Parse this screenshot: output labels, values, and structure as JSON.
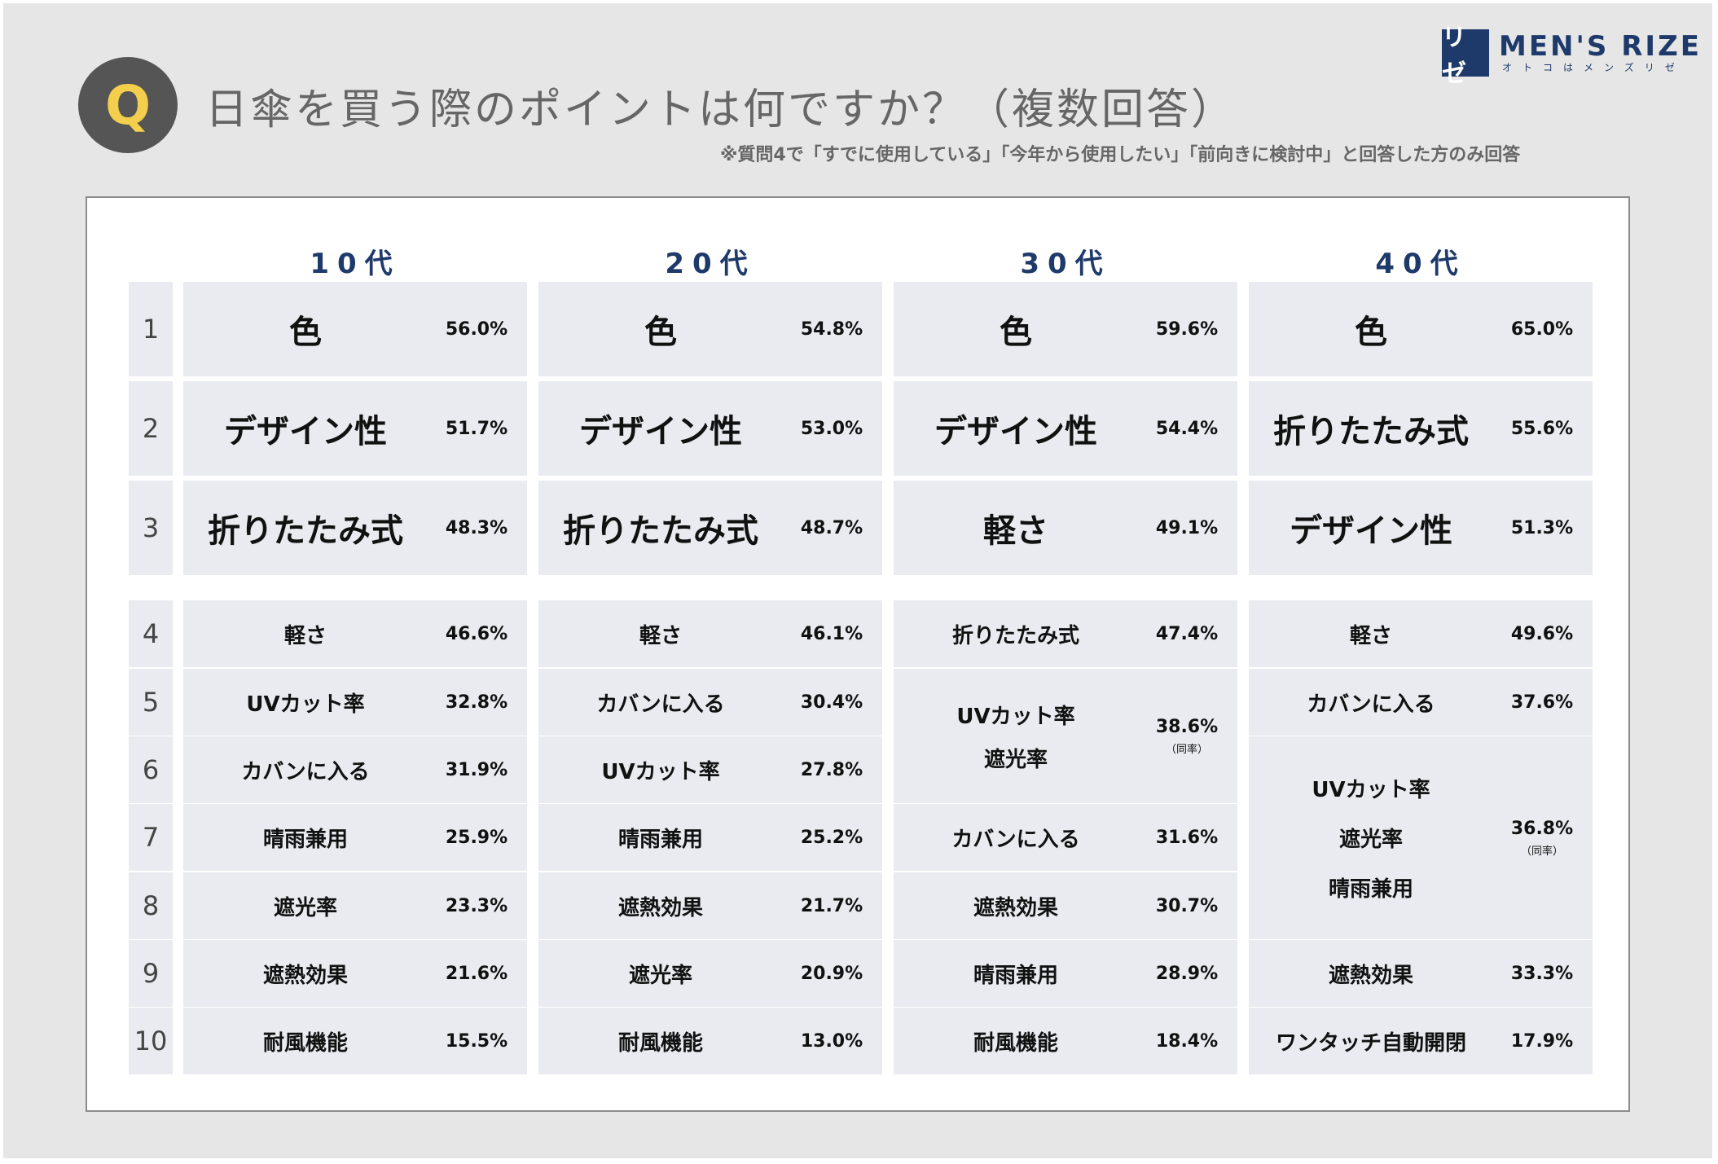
{
  "header": {
    "q_mark": "Q",
    "title": "日傘を買う際のポイントは何ですか？（複数回答）",
    "note": "※質問4で「すでに使用している」「今年から使用したい」「前向きに検討中」と回答した方のみ回答"
  },
  "logo": {
    "mark": "リゼ",
    "name": "MEN'S RIZE",
    "sub": "オトコはメンズリゼ"
  },
  "chart_data": {
    "type": "table",
    "title": "日傘を買う際のポイントは何ですか？（複数回答）",
    "note": "※質問4で「すでに使用している」「今年から使用したい」「前向きに検討中」と回答した方のみ回答",
    "ranks": [
      "1",
      "2",
      "3",
      "4",
      "5",
      "6",
      "7",
      "8",
      "9",
      "10"
    ],
    "tie_label": "（同率）",
    "columns": [
      {
        "age": "10代",
        "entries": [
          {
            "ranks": [
              1
            ],
            "labels": [
              "色"
            ],
            "value": "56.0%"
          },
          {
            "ranks": [
              2
            ],
            "labels": [
              "デザイン性"
            ],
            "value": "51.7%"
          },
          {
            "ranks": [
              3
            ],
            "labels": [
              "折りたたみ式"
            ],
            "value": "48.3%"
          },
          {
            "ranks": [
              4
            ],
            "labels": [
              "軽さ"
            ],
            "value": "46.6%"
          },
          {
            "ranks": [
              5
            ],
            "labels": [
              "UVカット率"
            ],
            "value": "32.8%"
          },
          {
            "ranks": [
              6
            ],
            "labels": [
              "カバンに入る"
            ],
            "value": "31.9%"
          },
          {
            "ranks": [
              7
            ],
            "labels": [
              "晴雨兼用"
            ],
            "value": "25.9%"
          },
          {
            "ranks": [
              8
            ],
            "labels": [
              "遮光率"
            ],
            "value": "23.3%"
          },
          {
            "ranks": [
              9
            ],
            "labels": [
              "遮熱効果"
            ],
            "value": "21.6%"
          },
          {
            "ranks": [
              10
            ],
            "labels": [
              "耐風機能"
            ],
            "value": "15.5%"
          }
        ]
      },
      {
        "age": "20代",
        "entries": [
          {
            "ranks": [
              1
            ],
            "labels": [
              "色"
            ],
            "value": "54.8%"
          },
          {
            "ranks": [
              2
            ],
            "labels": [
              "デザイン性"
            ],
            "value": "53.0%"
          },
          {
            "ranks": [
              3
            ],
            "labels": [
              "折りたたみ式"
            ],
            "value": "48.7%"
          },
          {
            "ranks": [
              4
            ],
            "labels": [
              "軽さ"
            ],
            "value": "46.1%"
          },
          {
            "ranks": [
              5
            ],
            "labels": [
              "カバンに入る"
            ],
            "value": "30.4%"
          },
          {
            "ranks": [
              6
            ],
            "labels": [
              "UVカット率"
            ],
            "value": "27.8%"
          },
          {
            "ranks": [
              7
            ],
            "labels": [
              "晴雨兼用"
            ],
            "value": "25.2%"
          },
          {
            "ranks": [
              8
            ],
            "labels": [
              "遮熱効果"
            ],
            "value": "21.7%"
          },
          {
            "ranks": [
              9
            ],
            "labels": [
              "遮光率"
            ],
            "value": "20.9%"
          },
          {
            "ranks": [
              10
            ],
            "labels": [
              "耐風機能"
            ],
            "value": "13.0%"
          }
        ]
      },
      {
        "age": "30代",
        "entries": [
          {
            "ranks": [
              1
            ],
            "labels": [
              "色"
            ],
            "value": "59.6%"
          },
          {
            "ranks": [
              2
            ],
            "labels": [
              "デザイン性"
            ],
            "value": "54.4%"
          },
          {
            "ranks": [
              3
            ],
            "labels": [
              "軽さ"
            ],
            "value": "49.1%"
          },
          {
            "ranks": [
              4
            ],
            "labels": [
              "折りたたみ式"
            ],
            "value": "47.4%"
          },
          {
            "ranks": [
              5,
              6
            ],
            "labels": [
              "UVカット率",
              "遮光率"
            ],
            "value": "38.6%",
            "tie": true
          },
          {
            "ranks": [
              7
            ],
            "labels": [
              "カバンに入る"
            ],
            "value": "31.6%"
          },
          {
            "ranks": [
              8
            ],
            "labels": [
              "遮熱効果"
            ],
            "value": "30.7%"
          },
          {
            "ranks": [
              9
            ],
            "labels": [
              "晴雨兼用"
            ],
            "value": "28.9%"
          },
          {
            "ranks": [
              10
            ],
            "labels": [
              "耐風機能"
            ],
            "value": "18.4%"
          }
        ]
      },
      {
        "age": "40代",
        "entries": [
          {
            "ranks": [
              1
            ],
            "labels": [
              "色"
            ],
            "value": "65.0%"
          },
          {
            "ranks": [
              2
            ],
            "labels": [
              "折りたたみ式"
            ],
            "value": "55.6%"
          },
          {
            "ranks": [
              3
            ],
            "labels": [
              "デザイン性"
            ],
            "value": "51.3%"
          },
          {
            "ranks": [
              4
            ],
            "labels": [
              "軽さ"
            ],
            "value": "49.6%"
          },
          {
            "ranks": [
              5
            ],
            "labels": [
              "カバンに入る"
            ],
            "value": "37.6%"
          },
          {
            "ranks": [
              6,
              7,
              8
            ],
            "labels": [
              "UVカット率",
              "遮光率",
              "晴雨兼用"
            ],
            "value": "36.8%",
            "tie": true
          },
          {
            "ranks": [
              9
            ],
            "labels": [
              "遮熱効果"
            ],
            "value": "33.3%"
          },
          {
            "ranks": [
              10
            ],
            "labels": [
              "ワンタッチ自動開閉"
            ],
            "value": "17.9%"
          }
        ]
      }
    ]
  }
}
